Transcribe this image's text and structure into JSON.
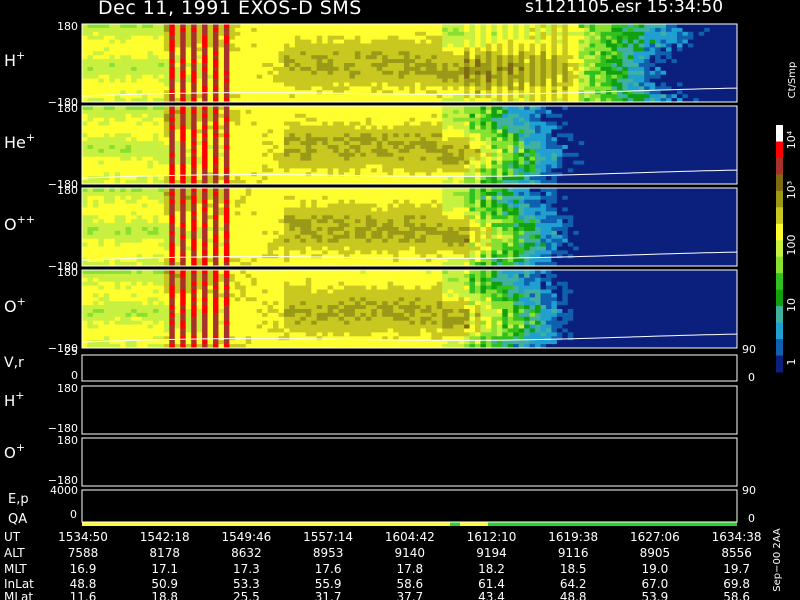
{
  "header": {
    "date_title": "Dec 11, 1991    EXOS-D SMS",
    "file_time": "s1121105.esr  15:34:50"
  },
  "colorbar": {
    "unit_label": "Ct/Smp",
    "ticks": [
      "10⁴",
      "10³",
      "100",
      "10",
      "1"
    ],
    "colors": [
      "#ffffff",
      "#ff0000",
      "#a8322a",
      "#7e6a12",
      "#9a9a18",
      "#c8c820",
      "#ffff30",
      "#c8f040",
      "#88e030",
      "#30c020",
      "#10a010",
      "#40b0a0",
      "#20a0d0",
      "#1060b0",
      "#0b1f7c"
    ]
  },
  "spectro_panels": [
    {
      "label": "H",
      "sup": "+",
      "top": "180",
      "bottom": "−180"
    },
    {
      "label": "He",
      "sup": "+",
      "top": "180",
      "bottom": "−180"
    },
    {
      "label": "O",
      "sup": "++",
      "top": "180",
      "bottom": "−180"
    },
    {
      "label": "O",
      "sup": "+",
      "top": "180",
      "bottom": "−180"
    }
  ],
  "vr_panel": {
    "label": "V,r",
    "top": "25",
    "bottom": "0",
    "right_top": "90",
    "right_bottom": "0"
  },
  "lower_panels": [
    {
      "label": "H",
      "sup": "+",
      "top": "180",
      "bottom": "−180"
    },
    {
      "label": "O",
      "sup": "+",
      "top": "180",
      "bottom": "−180"
    }
  ],
  "ep_panel": {
    "label": "E,p",
    "top": "4000",
    "right_top": "90"
  },
  "qa_panel": {
    "label": "QA",
    "left_bottom": "0",
    "right_bottom": "0"
  },
  "side_label": "Sep−00  2AA",
  "chart_data": {
    "type": "heatmap",
    "x_label": "UT",
    "ephemeris": {
      "row_labels": [
        "UT",
        "ALT",
        "MLT",
        "InLat",
        "MLat"
      ],
      "columns": [
        [
          "1534:50",
          "7588",
          "16.9",
          "48.8",
          "11.6"
        ],
        [
          "1542:18",
          "8178",
          "17.1",
          "50.9",
          "18.8"
        ],
        [
          "1549:46",
          "8632",
          "17.3",
          "53.3",
          "25.5"
        ],
        [
          "1557:14",
          "8953",
          "17.6",
          "55.9",
          "31.7"
        ],
        [
          "1604:42",
          "9140",
          "17.8",
          "58.6",
          "37.7"
        ],
        [
          "1612:10",
          "9194",
          "18.2",
          "61.4",
          "43.4"
        ],
        [
          "1619:38",
          "9116",
          "18.5",
          "64.2",
          "48.8"
        ],
        [
          "1627:06",
          "8905",
          "19.0",
          "67.0",
          "53.9"
        ],
        [
          "1634:38",
          "8556",
          "19.7",
          "69.8",
          "58.6"
        ]
      ]
    },
    "y_range": [
      -180,
      180
    ],
    "color_scale": "log",
    "color_range": [
      1,
      10000
    ],
    "qa_segments": [
      {
        "from": "1534:50",
        "to": "1609:00",
        "color": "#ffff30"
      },
      {
        "from": "1609:00",
        "to": "1612:10",
        "color": "#30d030"
      },
      {
        "from": "1612:10",
        "to": "1634:38",
        "color": "#30d030"
      }
    ]
  }
}
